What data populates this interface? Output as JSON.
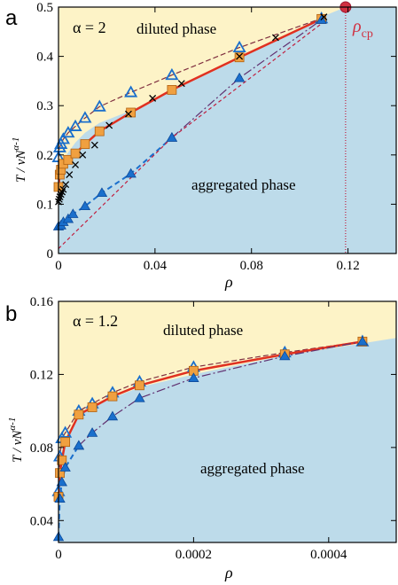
{
  "chart_data": [
    {
      "panel": "a",
      "type": "line",
      "annotations": {
        "alpha_label": "α = 2",
        "top_region": "diluted phase",
        "bottom_region": "aggregated phase",
        "critical_label": "ρ",
        "critical_sub": "cp"
      },
      "xlabel": "ρ",
      "ylabel_main": "T / νN",
      "ylabel_sup": "α-1",
      "xlim": [
        0,
        0.14
      ],
      "ylim": [
        0,
        0.5
      ],
      "xticks": [
        {
          "v": 0,
          "label": "0"
        },
        {
          "v": 0.04,
          "label": "0.04"
        },
        {
          "v": 0.08,
          "label": "0.08"
        },
        {
          "v": 0.12,
          "label": "0.12"
        }
      ],
      "yticks": [
        {
          "v": 0,
          "label": "0"
        },
        {
          "v": 0.1,
          "label": "0.1"
        },
        {
          "v": 0.2,
          "label": "0.2"
        },
        {
          "v": 0.3,
          "label": "0.3"
        },
        {
          "v": 0.4,
          "label": "0.4"
        },
        {
          "v": 0.5,
          "label": "0.5"
        }
      ],
      "background": {
        "top": "#fdf3c7",
        "bottom": "#bddbea"
      },
      "boundary": {
        "x": [
          0,
          0.0005,
          0.001,
          0.002,
          0.004,
          0.007,
          0.011,
          0.017,
          0.03,
          0.047,
          0.075,
          0.109,
          0.119
        ],
        "y": [
          0.105,
          0.16,
          0.175,
          0.19,
          0.205,
          0.225,
          0.245,
          0.265,
          0.29,
          0.33,
          0.395,
          0.48,
          0.5
        ]
      },
      "critical_x": 0.119,
      "critical_point": {
        "x": 0.119,
        "y": 0.5
      },
      "series": [
        {
          "marker": "triangle-open",
          "color": "#1a6fcc",
          "line_color": "#803040",
          "dash": "6,3",
          "x": [
            0,
            0.0005,
            0.001,
            0.002,
            0.004,
            0.007,
            0.011,
            0.017,
            0.03,
            0.047,
            0.075,
            0.109
          ],
          "y": [
            0.195,
            0.215,
            0.222,
            0.232,
            0.245,
            0.258,
            0.275,
            0.298,
            0.327,
            0.362,
            0.418,
            0.477
          ]
        },
        {
          "marker": "square",
          "color": "#f0a040",
          "line_color": "#e03020",
          "dash": "",
          "stroke_width": 2.5,
          "x": [
            0,
            0.0005,
            0.001,
            0.002,
            0.004,
            0.007,
            0.011,
            0.017,
            0.03,
            0.047,
            0.075,
            0.109
          ],
          "y": [
            0.135,
            0.16,
            0.17,
            0.182,
            0.19,
            0.203,
            0.222,
            0.248,
            0.286,
            0.332,
            0.398,
            0.476
          ]
        },
        {
          "marker": "triangle",
          "color": "#1a6fcc",
          "line_color": "#1a6fcc",
          "dash": "6,4",
          "stroke_width": 2,
          "x": [
            0,
            0.001,
            0.002,
            0.004,
            0.006,
            0.011,
            0.018,
            0.03,
            0.047
          ],
          "y": [
            0.055,
            0.057,
            0.064,
            0.07,
            0.08,
            0.096,
            0.123,
            0.162,
            0.235
          ]
        },
        {
          "marker": "triangle",
          "color": "#1a6fcc",
          "line_color": "#603070",
          "dash": "10,3,2,3",
          "x": [
            0.047,
            0.075,
            0.109
          ],
          "y": [
            0.235,
            0.356,
            0.474
          ]
        },
        {
          "marker": "x",
          "color": "#000000",
          "line_color": "",
          "dash": "",
          "x": [
            0,
            0.0003,
            0.0006,
            0.001,
            0.0015,
            0.002,
            0.003,
            0.0045,
            0.007,
            0.01,
            0.015,
            0.021,
            0.029,
            0.039,
            0.051,
            0.075,
            0.09,
            0.11,
            0.119
          ],
          "y": [
            0.105,
            0.11,
            0.115,
            0.12,
            0.125,
            0.13,
            0.14,
            0.16,
            0.18,
            0.2,
            0.22,
            0.26,
            0.283,
            0.315,
            0.345,
            0.4,
            0.438,
            0.48,
            0.5
          ]
        },
        {
          "marker": "none",
          "color": "",
          "line_color": "#c02040",
          "dash": "4,3",
          "x": [
            0,
            0.047,
            0.11
          ],
          "y": [
            0.01,
            0.235,
            0.47
          ]
        }
      ]
    },
    {
      "panel": "b",
      "type": "line",
      "annotations": {
        "alpha_label": "α = 1.2",
        "top_region": "diluted phase",
        "bottom_region": "aggregated phase"
      },
      "xlabel": "ρ",
      "ylabel_main": "T / νN",
      "ylabel_sup": "α-1",
      "xlim": [
        0,
        0.0005
      ],
      "ylim": [
        0.028,
        0.16
      ],
      "xticks": [
        {
          "v": 0,
          "label": "0"
        },
        {
          "v": 0.0002,
          "label": "0.0002"
        },
        {
          "v": 0.0004,
          "label": "0.0004"
        }
      ],
      "yticks": [
        {
          "v": 0.04,
          "label": "0.04"
        },
        {
          "v": 0.08,
          "label": "0.08"
        },
        {
          "v": 0.12,
          "label": "0.12"
        },
        {
          "v": 0.16,
          "label": "0.16"
        }
      ],
      "background": {
        "top": "#fdf3c7",
        "bottom": "#bddbea"
      },
      "boundary": {
        "x": [
          0,
          2e-06,
          5e-06,
          1e-05,
          3e-05,
          5e-05,
          8e-05,
          0.00012,
          0.0002,
          0.00033,
          0.00045,
          0.0005
        ],
        "y": [
          0.055,
          0.07,
          0.078,
          0.085,
          0.097,
          0.102,
          0.107,
          0.113,
          0.12,
          0.13,
          0.137,
          0.14
        ]
      },
      "series": [
        {
          "marker": "triangle-open",
          "color": "#1a6fcc",
          "line_color": "#803040",
          "dash": "6,3",
          "x": [
            0,
            2e-06,
            5e-06,
            1e-05,
            3e-05,
            5e-05,
            8e-05,
            0.00012,
            0.0002,
            0.000335,
            0.00045
          ],
          "y": [
            0.056,
            0.075,
            0.085,
            0.088,
            0.1,
            0.104,
            0.11,
            0.116,
            0.124,
            0.132,
            0.138
          ]
        },
        {
          "marker": "square",
          "color": "#f0a040",
          "line_color": "#e03020",
          "dash": "",
          "stroke_width": 2.5,
          "x": [
            0,
            2e-06,
            5e-06,
            1e-05,
            3e-05,
            5e-05,
            8e-05,
            0.00012,
            0.0002,
            0.000335,
            0.00045
          ],
          "y": [
            0.053,
            0.066,
            0.073,
            0.083,
            0.098,
            0.102,
            0.108,
            0.114,
            0.122,
            0.131,
            0.138
          ]
        },
        {
          "marker": "triangle",
          "color": "#1a6fcc",
          "line_color": "#1a6fcc",
          "dash": "6,4",
          "stroke_width": 2,
          "x": [
            0,
            2e-06,
            5e-06,
            1e-05,
            3e-05
          ],
          "y": [
            0.031,
            0.052,
            0.061,
            0.069,
            0.081
          ]
        },
        {
          "marker": "triangle",
          "color": "#1a6fcc",
          "line_color": "#603070",
          "dash": "10,3,2,3",
          "x": [
            3e-05,
            5e-05,
            8e-05,
            0.00012,
            0.0002,
            0.000335,
            0.00045
          ],
          "y": [
            0.081,
            0.088,
            0.097,
            0.107,
            0.118,
            0.13,
            0.138
          ]
        }
      ]
    }
  ]
}
